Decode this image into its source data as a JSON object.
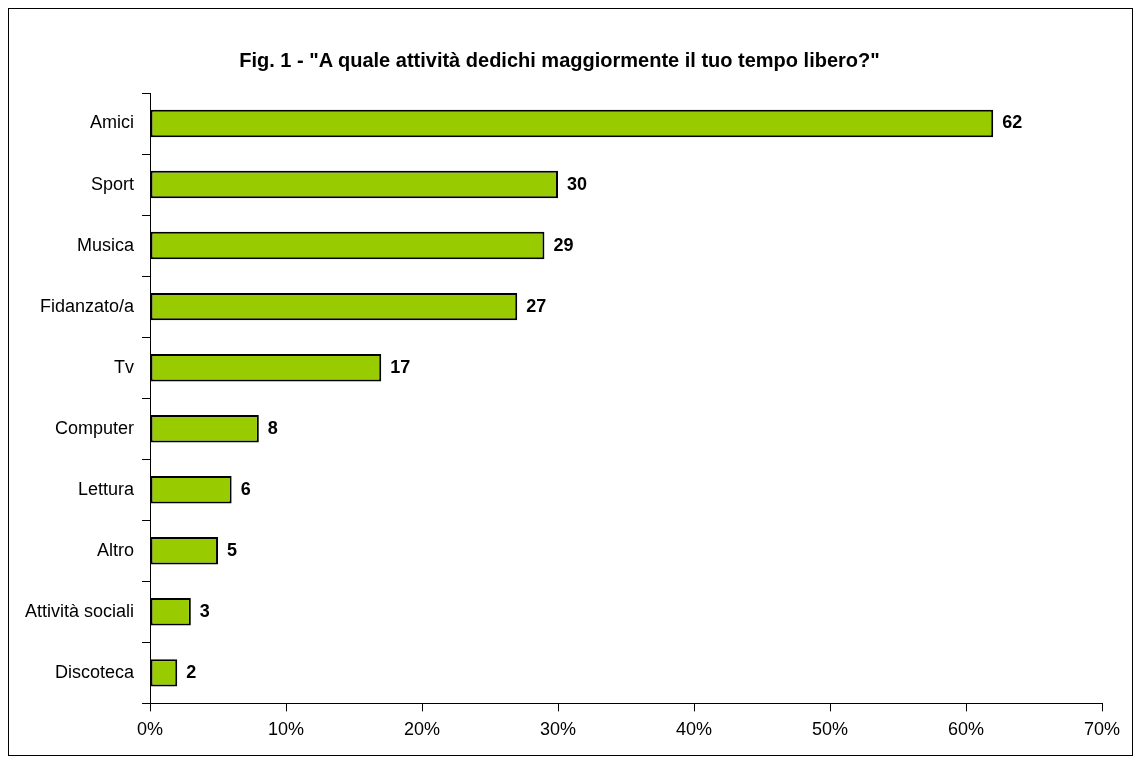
{
  "chart_data": {
    "type": "bar",
    "orientation": "horizontal",
    "title": "Fig. 1 - \"A quale attività dedichi maggiormente il tuo tempo libero?\"",
    "categories": [
      "Amici",
      "Sport",
      "Musica",
      "Fidanzato/a",
      "Tv",
      "Computer",
      "Lettura",
      "Altro",
      "Attività sociali",
      "Discoteca"
    ],
    "values": [
      62,
      30,
      29,
      27,
      17,
      8,
      6,
      5,
      3,
      2
    ],
    "color": "#99cc00",
    "xlim": [
      0,
      70
    ],
    "xticks": [
      {
        "value": 0,
        "label": "0%"
      },
      {
        "value": 10,
        "label": "10%"
      },
      {
        "value": 20,
        "label": "20%"
      },
      {
        "value": 30,
        "label": "30%"
      },
      {
        "value": 40,
        "label": "40%"
      },
      {
        "value": 50,
        "label": "50%"
      },
      {
        "value": 60,
        "label": "60%"
      },
      {
        "value": 70,
        "label": "70%"
      }
    ],
    "data_labels": true,
    "grid": false,
    "legend": false
  }
}
